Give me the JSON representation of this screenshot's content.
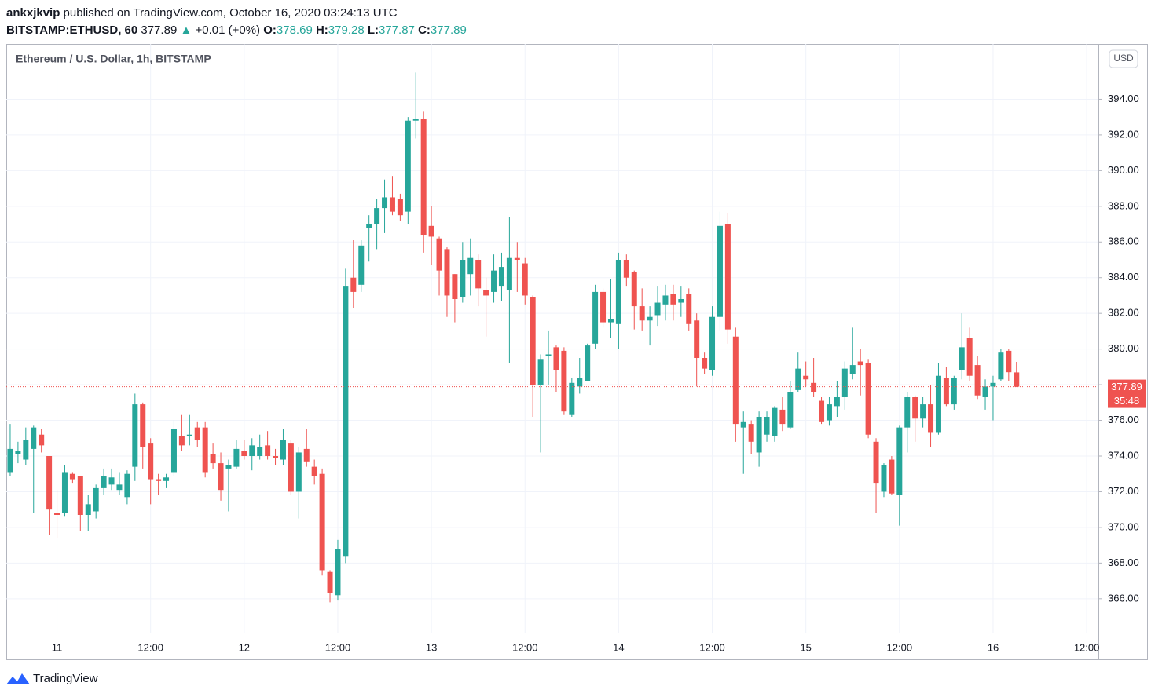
{
  "header": {
    "author": "ankxjkvip",
    "published": "published on TradingView.com, October 16, 2020 03:24:13 UTC",
    "symbol": "BITSTAMP:ETHUSD, 60",
    "change": "+0.01 (+0%)",
    "ohlc_labels": [
      "O:",
      "H:",
      "L:",
      "C:"
    ]
  },
  "chart_data": {
    "type": "candlestick",
    "title": "Ethereum / U.S. Dollar, 1h, BITSTAMP",
    "currency": "USD",
    "countdown": "35:48",
    "up_color": "#26a69a",
    "down_color": "#ef5350",
    "grid": true,
    "categories": [
      null,
      null,
      null,
      null,
      null,
      null,
      "11",
      null,
      null,
      null,
      null,
      null,
      null,
      null,
      null,
      null,
      null,
      null,
      "12:00",
      null,
      null,
      null,
      null,
      null,
      null,
      null,
      null,
      null,
      null,
      null,
      "12",
      null,
      null,
      null,
      null,
      null,
      null,
      null,
      null,
      null,
      null,
      null,
      "12:00",
      null,
      null,
      null,
      null,
      null,
      null,
      null,
      null,
      null,
      null,
      null,
      "13",
      null,
      null,
      null,
      null,
      null,
      null,
      null,
      null,
      null,
      null,
      null,
      "12:00",
      null,
      null,
      null,
      null,
      null,
      null,
      null,
      null,
      null,
      null,
      null,
      "14",
      null,
      null,
      null,
      null,
      null,
      null,
      null,
      null,
      null,
      null,
      null,
      "12:00",
      null,
      null,
      null,
      null,
      null,
      null,
      null,
      null,
      null,
      null,
      null,
      "15",
      null,
      null,
      null,
      null,
      null,
      null,
      null,
      null,
      null,
      null,
      null,
      "12:00",
      null,
      null,
      null,
      null,
      null,
      null,
      null,
      null,
      null,
      null,
      null,
      "16",
      null,
      null,
      null,
      null,
      null,
      null,
      null,
      null,
      null,
      null,
      null,
      "12:00",
      null
    ],
    "open": [
      373.1,
      374.1,
      373.8,
      374.4,
      375.2,
      374.0,
      370.8,
      370.8,
      373.0,
      372.9,
      370.7,
      370.9,
      372.2,
      372.4,
      372.1,
      371.7,
      373.4,
      376.9,
      374.7,
      372.7,
      372.6,
      373.1,
      375.1,
      375.1,
      375.6,
      375.6,
      374.1,
      373.6,
      373.3,
      373.4,
      374.3,
      374.0,
      374.0,
      374.6,
      374.0,
      373.8,
      374.7,
      372.0,
      374.4,
      373.4,
      373.0,
      367.5,
      366.2,
      368.4,
      384.0,
      383.6,
      386.8,
      387.0,
      387.9,
      388.5,
      388.4,
      387.7,
      392.8,
      392.9,
      386.9,
      386.2,
      385.6,
      384.2,
      382.9,
      384.2,
      385.0,
      383.3,
      383.2,
      383.5,
      383.3,
      385.1,
      384.8,
      382.9,
      378.0,
      379.6,
      380.1,
      379.9,
      376.3,
      377.9,
      378.2,
      380.3,
      383.2,
      381.5,
      381.4,
      385.0,
      384.3,
      382.4,
      381.6,
      381.9,
      382.5,
      383.1,
      382.6,
      383.1,
      381.6,
      379.5,
      378.8,
      381.8,
      387.0,
      380.7,
      375.6,
      375.8,
      374.2,
      375.2,
      375.1,
      376.6,
      375.6,
      377.7,
      378.5,
      378.1,
      377.1,
      376.0,
      376.8,
      377.3,
      378.6,
      379.3,
      379.2,
      374.8,
      372.0,
      373.8,
      371.8,
      375.6,
      377.3,
      376.1,
      376.9,
      375.3,
      378.4,
      376.9,
      378.8,
      380.6,
      379.1,
      377.3,
      377.9,
      378.3,
      379.9,
      378.69,
      null,
      null,
      null,
      null,
      null,
      null,
      null,
      null,
      null,
      null
    ],
    "high": [
      375.8,
      374.8,
      375.6,
      375.7,
      375.5,
      374.0,
      372.1,
      373.5,
      373.1,
      372.9,
      371.8,
      372.4,
      373.3,
      373.3,
      373.1,
      373.2,
      377.5,
      377.0,
      375.0,
      373.0,
      373.0,
      376.0,
      376.3,
      376.3,
      375.9,
      375.9,
      374.7,
      374.2,
      373.8,
      374.9,
      374.9,
      375.0,
      375.2,
      375.4,
      374.4,
      375.5,
      374.9,
      374.5,
      375.5,
      373.8,
      373.3,
      367.6,
      369.3,
      384.5,
      386.1,
      386.1,
      387.5,
      388.4,
      389.5,
      389.7,
      388.7,
      393.0,
      395.5,
      393.3,
      388.0,
      386.3,
      385.7,
      384.2,
      386.0,
      386.2,
      385.3,
      384.0,
      385.3,
      385.4,
      387.4,
      386.0,
      385.1,
      383.0,
      379.7,
      381.0,
      380.2,
      380.1,
      378.4,
      379.5,
      380.3,
      383.6,
      383.4,
      383.9,
      385.4,
      385.3,
      384.4,
      383.4,
      382.4,
      383.5,
      383.6,
      383.6,
      383.5,
      383.4,
      382.0,
      379.8,
      382.4,
      387.7,
      387.6,
      381.2,
      376.5,
      376.0,
      376.5,
      376.5,
      376.8,
      377.3,
      378.2,
      379.8,
      379.3,
      379.5,
      377.3,
      377.3,
      378.2,
      379.3,
      381.2,
      380.0,
      379.4,
      375.0,
      373.6,
      374.0,
      375.7,
      377.6,
      377.4,
      377.3,
      378.0,
      379.2,
      379.0,
      378.5,
      382.0,
      381.2,
      379.6,
      378.3,
      378.5,
      380.0,
      380.0,
      379.28,
      null,
      null,
      null,
      null,
      null,
      null,
      null,
      null,
      null,
      null
    ],
    "low": [
      372.9,
      373.6,
      373.5,
      370.8,
      374.2,
      369.6,
      369.4,
      370.6,
      372.5,
      369.8,
      369.8,
      370.5,
      371.8,
      372.1,
      371.8,
      371.3,
      372.6,
      373.3,
      371.3,
      371.8,
      372.2,
      372.9,
      374.3,
      374.6,
      374.5,
      372.8,
      373.3,
      371.5,
      370.9,
      373.3,
      373.8,
      373.2,
      373.8,
      373.8,
      373.5,
      373.5,
      371.8,
      370.5,
      373.4,
      372.4,
      367.3,
      365.8,
      365.9,
      368.0,
      382.3,
      383.2,
      384.9,
      385.6,
      386.5,
      387.5,
      387.2,
      387.0,
      391.8,
      385.4,
      384.7,
      383.0,
      381.8,
      381.5,
      382.6,
      383.0,
      382.4,
      380.7,
      382.6,
      382.7,
      379.2,
      383.2,
      382.5,
      376.2,
      374.2,
      378.0,
      377.6,
      376.3,
      376.2,
      377.5,
      378.2,
      380.0,
      381.2,
      380.6,
      380.0,
      383.5,
      381.1,
      381.0,
      380.2,
      381.3,
      381.6,
      381.6,
      381.8,
      381.0,
      377.9,
      378.6,
      378.5,
      381.0,
      380.3,
      374.8,
      373.0,
      374.1,
      373.4,
      374.8,
      374.8,
      375.4,
      375.5,
      377.6,
      377.9,
      377.3,
      375.8,
      375.7,
      376.2,
      376.6,
      378.3,
      377.4,
      375.0,
      370.8,
      371.7,
      371.8,
      370.1,
      374.2,
      374.8,
      375.6,
      374.5,
      375.2,
      376.8,
      376.6,
      378.3,
      378.2,
      377.2,
      376.6,
      376.0,
      378.2,
      378.2,
      377.87,
      null,
      null,
      null,
      null,
      null,
      null,
      null,
      null,
      null,
      null
    ],
    "close": [
      374.4,
      374.3,
      374.9,
      375.6,
      374.6,
      371.0,
      370.7,
      373.1,
      372.7,
      370.7,
      371.3,
      372.2,
      372.9,
      372.8,
      372.4,
      373.0,
      376.9,
      374.5,
      372.7,
      372.6,
      372.8,
      375.5,
      374.6,
      375.2,
      374.9,
      373.1,
      373.6,
      372.1,
      373.5,
      374.4,
      374.0,
      374.6,
      374.5,
      374.0,
      373.9,
      374.9,
      372.0,
      374.2,
      373.7,
      372.9,
      367.6,
      366.3,
      368.8,
      383.5,
      383.2,
      385.8,
      387.0,
      387.9,
      388.5,
      387.7,
      387.5,
      392.8,
      392.9,
      386.4,
      386.3,
      384.4,
      383.0,
      382.8,
      385.0,
      385.1,
      383.4,
      383.0,
      384.4,
      384.6,
      385.1,
      385.0,
      383.0,
      378.0,
      379.4,
      379.7,
      378.8,
      376.5,
      378.1,
      378.4,
      380.2,
      383.2,
      381.5,
      381.7,
      385.0,
      384.0,
      382.4,
      381.6,
      381.8,
      382.6,
      383.0,
      382.5,
      382.8,
      381.4,
      379.5,
      378.9,
      381.8,
      386.9,
      381.1,
      375.8,
      375.9,
      374.8,
      376.2,
      376.2,
      376.7,
      375.8,
      377.6,
      378.9,
      378.3,
      377.6,
      375.9,
      376.9,
      377.3,
      378.9,
      379.1,
      379.1,
      375.2,
      372.5,
      373.5,
      371.9,
      375.6,
      377.3,
      376.1,
      376.9,
      375.3,
      378.5,
      376.9,
      378.4,
      380.1,
      378.5,
      377.4,
      377.9,
      378.1,
      379.8,
      378.7,
      377.89,
      null,
      null,
      null,
      null,
      null,
      null,
      null,
      null,
      null,
      null
    ],
    "ylim": [
      364.1,
      397.1
    ],
    "yticks": [
      {
        "value": 366,
        "label": "366.00"
      },
      {
        "value": 368,
        "label": "368.00"
      },
      {
        "value": 370,
        "label": "370.00"
      },
      {
        "value": 372,
        "label": "372.00"
      },
      {
        "value": 374,
        "label": "374.00"
      },
      {
        "value": 376,
        "label": "376.00"
      },
      {
        "value": 378,
        "label": "378.00"
      },
      {
        "value": 380,
        "label": "380.00"
      },
      {
        "value": 382,
        "label": "382.00"
      },
      {
        "value": 384,
        "label": "384.00"
      },
      {
        "value": 386,
        "label": "386.00"
      },
      {
        "value": 388,
        "label": "388.00"
      },
      {
        "value": 390,
        "label": "390.00"
      },
      {
        "value": 392,
        "label": "392.00"
      },
      {
        "value": 394,
        "label": "394.00"
      }
    ]
  },
  "footer": {
    "brand": "TradingView"
  }
}
